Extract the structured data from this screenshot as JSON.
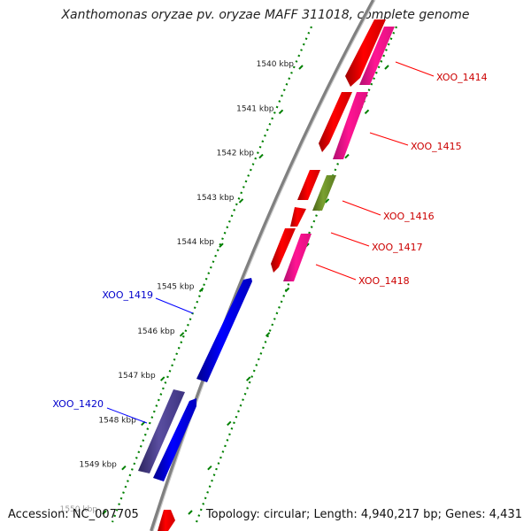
{
  "title": "Xanthomonas oryzae pv. oryzae MAFF 311018, complete genome",
  "footer": {
    "accession": "Accession: NC_007705",
    "summary": "Topology: circular; Length: 4,940,217 bp; Genes: 4,431"
  },
  "colors": {
    "forward_gene": "#ff0000",
    "forward_gene_alt": "#ff1493",
    "reverse_gene": "#0000ff",
    "reverse_gene_alt": "#483d8b",
    "other_gene": "#6b8e23",
    "tick": "#008000",
    "backbone": "#808080",
    "label_forward": "#cc0000",
    "label_reverse": "#0000cc"
  },
  "ticks": [
    "1540 kbp",
    "1541 kbp",
    "1542 kbp",
    "1543 kbp",
    "1544 kbp",
    "1545 kbp",
    "1546 kbp",
    "1547 kbp",
    "1548 kbp",
    "1549 kbp",
    "1550 kbp"
  ],
  "labels": {
    "g1414": "XOO_1414",
    "g1415": "XOO_1415",
    "g1416": "XOO_1416",
    "g1417": "XOO_1417",
    "g1418": "XOO_1418",
    "g1419": "XOO_1419",
    "g1420": "XOO_1420"
  }
}
